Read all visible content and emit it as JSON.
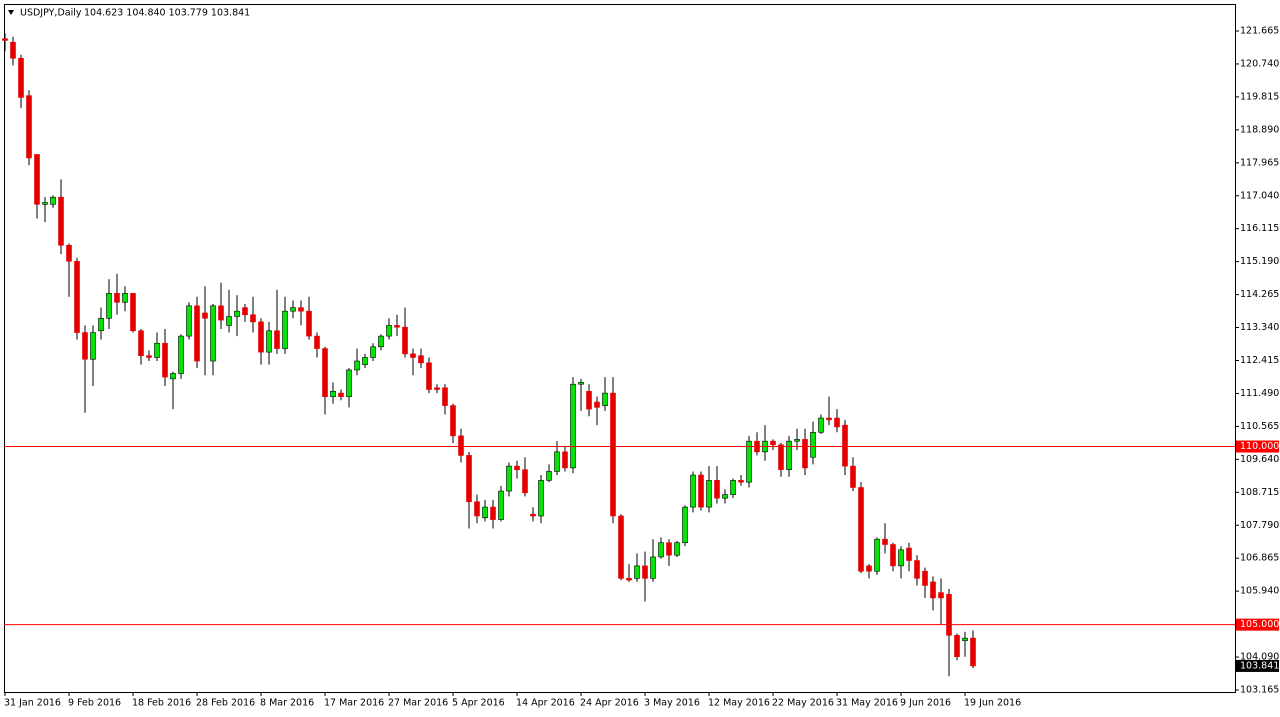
{
  "chart_data": {
    "type": "candlestick",
    "title": "USDJPY,Daily",
    "header_values": "104.623 104.840 103.779 103.841",
    "categories": [
      "31 Jan 2016",
      null,
      null,
      null,
      null,
      null,
      null,
      null,
      "9 Feb 2016",
      null,
      null,
      null,
      null,
      null,
      null,
      null,
      "18 Feb 2016",
      null,
      null,
      null,
      null,
      null,
      null,
      null,
      "28 Feb 2016",
      null,
      null,
      null,
      null,
      null,
      null,
      null,
      "8 Mar 2016",
      null,
      null,
      null,
      null,
      null,
      null,
      null,
      "17 Mar 2016",
      null,
      null,
      null,
      null,
      null,
      null,
      null,
      "27 Mar 2016",
      null,
      null,
      null,
      null,
      null,
      null,
      null,
      "5 Apr 2016",
      null,
      null,
      null,
      null,
      null,
      null,
      null,
      "14 Apr 2016",
      null,
      null,
      null,
      null,
      null,
      null,
      null,
      "24 Apr 2016",
      null,
      null,
      null,
      null,
      null,
      null,
      null,
      "3 May 2016",
      null,
      null,
      null,
      null,
      null,
      null,
      null,
      "12 May 2016",
      null,
      null,
      null,
      null,
      null,
      null,
      null,
      "22 May 2016",
      null,
      null,
      null,
      null,
      null,
      null,
      null,
      "31 May 2016",
      null,
      null,
      null,
      null,
      null,
      null,
      null,
      "9 Jun 2016",
      null,
      null,
      null,
      null,
      null,
      null,
      null,
      "19 Jun 2016",
      null
    ],
    "open": [
      121.45,
      121.35,
      120.9,
      119.85,
      118.2,
      116.8,
      116.8,
      117.0,
      115.65,
      115.2,
      113.2,
      112.45,
      113.25,
      113.6,
      114.3,
      114.05,
      114.3,
      113.25,
      112.55,
      112.5,
      112.9,
      111.9,
      112.05,
      113.1,
      113.95,
      113.75,
      112.4,
      113.95,
      113.4,
      113.65,
      113.9,
      113.7,
      113.5,
      112.65,
      113.25,
      112.75,
      113.8,
      113.9,
      113.8,
      113.1,
      112.75,
      111.4,
      111.5,
      111.4,
      112.15,
      112.3,
      112.5,
      112.8,
      113.1,
      113.4,
      113.35,
      112.6,
      112.55,
      112.35,
      111.65,
      111.65,
      111.15,
      110.3,
      109.75,
      108.45,
      108.0,
      108.3,
      107.95,
      108.75,
      109.45,
      109.35,
      108.1,
      108.05,
      109.05,
      109.3,
      109.85,
      109.4,
      111.75,
      111.55,
      111.25,
      111.15,
      111.5,
      108.05,
      106.3,
      106.3,
      106.65,
      106.3,
      106.9,
      107.3,
      106.95,
      107.3,
      108.3,
      109.2,
      108.3,
      109.05,
      108.55,
      108.65,
      109.05,
      109.0,
      110.15,
      109.85,
      110.15,
      110.05,
      109.35,
      110.15,
      110.2,
      109.7,
      110.4,
      110.8,
      110.8,
      110.6,
      109.45,
      108.85,
      106.65,
      106.5,
      107.4,
      107.25,
      106.65,
      107.15,
      106.8,
      106.5,
      106.2,
      105.9,
      105.85,
      104.7,
      104.55,
      104.623
    ],
    "high": [
      121.6,
      121.5,
      121.0,
      120.0,
      118.2,
      117.0,
      117.05,
      117.5,
      115.7,
      115.3,
      113.4,
      113.4,
      113.9,
      114.7,
      114.85,
      114.5,
      114.3,
      113.3,
      112.7,
      113.2,
      113.3,
      112.1,
      113.15,
      114.05,
      114.2,
      114.5,
      114.0,
      114.6,
      114.4,
      114.25,
      114.0,
      114.2,
      113.6,
      113.5,
      114.4,
      114.2,
      114.1,
      114.1,
      114.2,
      113.2,
      112.8,
      111.8,
      111.6,
      112.2,
      112.75,
      112.6,
      112.9,
      113.15,
      113.6,
      113.7,
      113.9,
      112.75,
      112.75,
      112.5,
      111.75,
      111.75,
      111.2,
      110.5,
      109.85,
      108.65,
      108.5,
      108.5,
      108.9,
      109.55,
      109.6,
      109.7,
      108.3,
      109.2,
      109.5,
      110.15,
      110.0,
      111.95,
      111.9,
      111.75,
      111.4,
      111.95,
      111.95,
      108.1,
      106.7,
      107.0,
      107.05,
      107.4,
      107.45,
      107.4,
      107.35,
      108.35,
      109.3,
      109.3,
      109.45,
      109.45,
      108.8,
      109.1,
      109.2,
      110.3,
      110.4,
      110.6,
      110.2,
      110.1,
      110.3,
      110.5,
      110.5,
      110.7,
      110.9,
      111.4,
      111.05,
      110.75,
      109.7,
      109.0,
      106.7,
      107.45,
      107.85,
      107.3,
      107.2,
      107.3,
      106.95,
      106.6,
      106.35,
      106.3,
      106.0,
      104.75,
      104.8,
      104.84
    ],
    "low": [
      121.1,
      120.7,
      119.5,
      117.9,
      116.4,
      116.3,
      116.7,
      115.4,
      114.2,
      113.0,
      110.95,
      111.7,
      113.0,
      113.3,
      113.7,
      113.8,
      113.2,
      112.3,
      112.4,
      112.4,
      111.7,
      111.05,
      111.9,
      113.0,
      112.2,
      112.0,
      112.0,
      113.3,
      113.2,
      113.1,
      113.5,
      113.2,
      112.3,
      112.3,
      112.6,
      112.6,
      113.6,
      113.4,
      113.0,
      112.5,
      110.9,
      111.2,
      111.3,
      111.1,
      112.0,
      112.2,
      112.4,
      112.7,
      113.0,
      113.1,
      112.5,
      112.0,
      112.2,
      111.5,
      111.5,
      110.9,
      110.1,
      109.55,
      107.7,
      107.85,
      107.9,
      107.7,
      107.9,
      108.6,
      109.1,
      108.6,
      107.9,
      107.85,
      109.0,
      109.2,
      109.3,
      109.25,
      111.0,
      110.85,
      110.6,
      111.0,
      107.85,
      106.25,
      106.2,
      106.2,
      105.65,
      106.2,
      106.85,
      106.65,
      106.9,
      107.2,
      108.15,
      108.2,
      108.15,
      108.4,
      108.4,
      108.55,
      108.9,
      108.85,
      109.75,
      109.6,
      109.9,
      109.15,
      109.15,
      109.9,
      109.2,
      109.5,
      110.35,
      110.6,
      110.4,
      109.2,
      108.75,
      106.45,
      106.3,
      106.4,
      107.0,
      106.5,
      106.3,
      106.5,
      106.1,
      105.75,
      105.4,
      105.0,
      103.55,
      104.0,
      104.1,
      103.779
    ],
    "close": [
      121.4,
      120.9,
      119.8,
      118.1,
      116.8,
      116.85,
      117.0,
      115.65,
      115.2,
      113.2,
      112.45,
      113.2,
      113.6,
      114.3,
      114.05,
      114.3,
      113.25,
      112.55,
      112.5,
      112.9,
      111.95,
      112.05,
      113.1,
      113.95,
      112.4,
      113.6,
      113.95,
      113.55,
      113.65,
      113.8,
      113.7,
      113.5,
      112.65,
      113.25,
      112.75,
      113.8,
      113.9,
      113.8,
      113.1,
      112.75,
      111.4,
      111.55,
      111.4,
      112.15,
      112.4,
      112.5,
      112.8,
      113.1,
      113.4,
      113.35,
      112.6,
      112.5,
      112.35,
      111.6,
      111.6,
      111.15,
      110.3,
      109.75,
      108.45,
      108.05,
      108.3,
      107.95,
      108.75,
      109.45,
      109.35,
      108.7,
      108.05,
      109.05,
      109.3,
      109.85,
      109.4,
      111.75,
      111.8,
      111.05,
      111.1,
      111.5,
      108.05,
      106.3,
      106.25,
      106.65,
      106.3,
      106.9,
      107.3,
      106.95,
      107.3,
      108.3,
      109.2,
      108.3,
      109.05,
      108.55,
      108.65,
      109.05,
      109.0,
      110.15,
      109.85,
      110.15,
      110.05,
      109.35,
      110.15,
      110.2,
      109.4,
      110.4,
      110.8,
      110.75,
      110.55,
      109.45,
      108.85,
      106.5,
      106.5,
      107.4,
      107.25,
      106.65,
      107.1,
      106.8,
      106.3,
      106.1,
      105.75,
      105.75,
      104.7,
      104.1,
      104.62,
      103.841
    ],
    "up_color": "#00e600",
    "down_color": "#e60000",
    "wick_color": "#000000",
    "ylim": [
      103.109,
      122.423
    ],
    "yticks": [
      {
        "value": 121.665,
        "label": "121.665"
      },
      {
        "value": 120.74,
        "label": "120.740"
      },
      {
        "value": 119.815,
        "label": "119.815"
      },
      {
        "value": 118.89,
        "label": "118.890"
      },
      {
        "value": 117.965,
        "label": "117.965"
      },
      {
        "value": 117.04,
        "label": "117.040"
      },
      {
        "value": 116.115,
        "label": "116.115"
      },
      {
        "value": 115.19,
        "label": "115.190"
      },
      {
        "value": 114.265,
        "label": "114.265"
      },
      {
        "value": 113.34,
        "label": "113.340"
      },
      {
        "value": 112.415,
        "label": "112.415"
      },
      {
        "value": 111.49,
        "label": "111.490"
      },
      {
        "value": 110.565,
        "label": "110.565"
      },
      {
        "value": 109.64,
        "label": "109.640"
      },
      {
        "value": 108.715,
        "label": "108.715"
      },
      {
        "value": 107.79,
        "label": "107.790"
      },
      {
        "value": 106.865,
        "label": "106.865"
      },
      {
        "value": 105.94,
        "label": "105.940"
      },
      {
        "value": 104.09,
        "label": "104.090"
      },
      {
        "value": 103.165,
        "label": "103.165"
      }
    ],
    "levels": [
      {
        "value": 110,
        "label": "110.000"
      },
      {
        "value": 105,
        "label": "105.000"
      }
    ],
    "level_color": "#ff0000",
    "last_price": {
      "value": 103.841,
      "label": "103.841"
    }
  }
}
